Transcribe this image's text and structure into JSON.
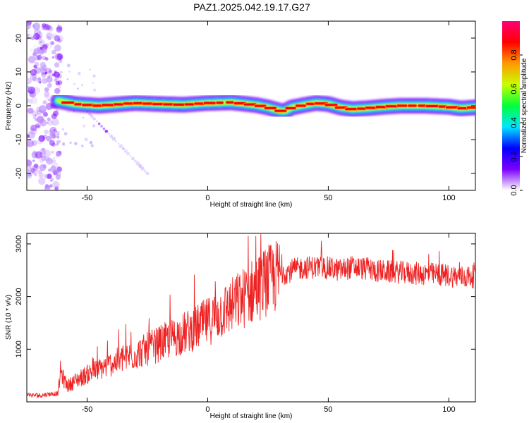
{
  "title": "PAZ1.2025.042.19.17.G27",
  "chart_data": [
    {
      "type": "heatmap",
      "xlabel": "Height of straight line (km)",
      "ylabel": "Frequency (Hz)",
      "xlim": [
        -75,
        111
      ],
      "ylim": [
        -25,
        25
      ],
      "x_ticks": [
        -50,
        0,
        50,
        100
      ],
      "y_ticks": [
        -20,
        -10,
        0,
        10,
        20
      ],
      "colorbar": {
        "label": "Normalized spectral amplitude",
        "range": [
          0,
          1
        ],
        "ticks": [
          0.0,
          0.2,
          0.4,
          0.6,
          0.8
        ],
        "colors": [
          "#ffffff",
          "#7b00ff",
          "#0000ff",
          "#00e5ff",
          "#00ff3c",
          "#c8ff00",
          "#ff9900",
          "#ff0000",
          "#ff0077"
        ]
      },
      "ridge": {
        "x": [
          -62,
          -55,
          -45,
          -30,
          -20,
          -10,
          0,
          10,
          20,
          25,
          30,
          32,
          35,
          40,
          45,
          50,
          55,
          60,
          65,
          70,
          75,
          80,
          90,
          100,
          105,
          111
        ],
        "y": [
          1.5,
          0.5,
          0.0,
          0.8,
          0.5,
          0.3,
          0.8,
          1.0,
          0.2,
          -0.5,
          -1.5,
          -1.6,
          -0.5,
          0.2,
          0.8,
          0.5,
          -0.5,
          -1.0,
          -0.8,
          -0.5,
          -0.2,
          0.0,
          0.0,
          -0.3,
          -0.8,
          -0.5
        ]
      },
      "diagonal_streak": {
        "x": [
          -55,
          -25
        ],
        "y": [
          2,
          -20
        ]
      }
    },
    {
      "type": "line",
      "xlabel": "Height of straight line (km)",
      "ylabel": "SNR (10 * v/v)",
      "xlim": [
        -75,
        111
      ],
      "ylim": [
        0,
        3200
      ],
      "x_ticks": [
        -50,
        0,
        50,
        100
      ],
      "y_ticks": [
        1000,
        2000,
        3000
      ],
      "line_color": "#ee2222",
      "series": {
        "x": [
          -75,
          -70,
          -65,
          -62,
          -61,
          -60,
          -58,
          -55,
          -50,
          -45,
          -40,
          -35,
          -30,
          -25,
          -20,
          -15,
          -10,
          -5,
          0,
          5,
          10,
          15,
          20,
          25,
          30,
          35,
          40,
          45,
          50,
          55,
          60,
          65,
          70,
          75,
          80,
          85,
          90,
          95,
          100,
          105,
          111
        ],
        "y": [
          130,
          120,
          150,
          160,
          600,
          450,
          300,
          400,
          520,
          620,
          720,
          820,
          900,
          1000,
          1100,
          1200,
          1300,
          1400,
          1520,
          1680,
          1820,
          1980,
          2150,
          2300,
          2420,
          2500,
          2550,
          2560,
          2540,
          2500,
          2560,
          2530,
          2490,
          2470,
          2460,
          2440,
          2430,
          2420,
          2400,
          2370,
          2380
        ]
      }
    }
  ]
}
